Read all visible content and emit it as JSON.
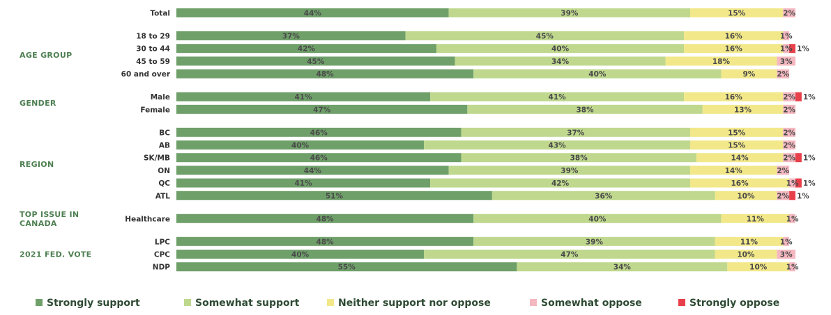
{
  "chart_data": {
    "type": "bar",
    "orientation": "horizontal",
    "stacked": true,
    "unit": "%",
    "xlim": [
      0,
      100
    ],
    "grid": false,
    "legend_position": "bottom",
    "series": [
      {
        "name": "Strongly support",
        "color": "#6fa06a"
      },
      {
        "name": "Somewhat support",
        "color": "#bfd88e"
      },
      {
        "name": "Neither support nor oppose",
        "color": "#f2e88a"
      },
      {
        "name": "Somewhat oppose",
        "color": "#f5b8c0"
      },
      {
        "name": "Strongly oppose",
        "color": "#e8404a"
      }
    ],
    "groups": [
      {
        "label": "",
        "rows": [
          {
            "label": "Total",
            "values": [
              44,
              39,
              15,
              2,
              0
            ]
          }
        ]
      },
      {
        "label": "AGE GROUP",
        "rows": [
          {
            "label": "18 to 29",
            "values": [
              37,
              45,
              16,
              1,
              0
            ]
          },
          {
            "label": "30 to 44",
            "values": [
              42,
              40,
              16,
              1,
              1
            ]
          },
          {
            "label": "45 to 59",
            "values": [
              45,
              34,
              18,
              3,
              0
            ]
          },
          {
            "label": "60 and over",
            "values": [
              48,
              40,
              9,
              2,
              0
            ]
          }
        ]
      },
      {
        "label": "GENDER",
        "rows": [
          {
            "label": "Male",
            "values": [
              41,
              41,
              16,
              2,
              1
            ]
          },
          {
            "label": "Female",
            "values": [
              47,
              38,
              13,
              2,
              0
            ]
          }
        ]
      },
      {
        "label": "REGION",
        "rows": [
          {
            "label": "BC",
            "values": [
              46,
              37,
              15,
              2,
              0
            ]
          },
          {
            "label": "AB",
            "values": [
              40,
              43,
              15,
              2,
              0
            ]
          },
          {
            "label": "SK/MB",
            "values": [
              46,
              38,
              14,
              2,
              1
            ]
          },
          {
            "label": "ON",
            "values": [
              44,
              39,
              14,
              2,
              0
            ]
          },
          {
            "label": "QC",
            "values": [
              41,
              42,
              16,
              1,
              1
            ]
          },
          {
            "label": "ATL",
            "values": [
              51,
              36,
              10,
              2,
              1
            ]
          }
        ]
      },
      {
        "label": "TOP ISSUE IN CANADA",
        "label_lines": [
          "TOP ISSUE IN",
          "CANADA"
        ],
        "rows": [
          {
            "label": "Healthcare",
            "values": [
              48,
              40,
              11,
              1,
              0
            ]
          }
        ]
      },
      {
        "label": "2021 FED. VOTE",
        "rows": [
          {
            "label": "LPC",
            "values": [
              48,
              39,
              11,
              1,
              0
            ]
          },
          {
            "label": "CPC",
            "values": [
              40,
              47,
              10,
              3,
              0
            ]
          },
          {
            "label": "NDP",
            "values": [
              55,
              34,
              10,
              1,
              0
            ]
          }
        ]
      }
    ]
  }
}
